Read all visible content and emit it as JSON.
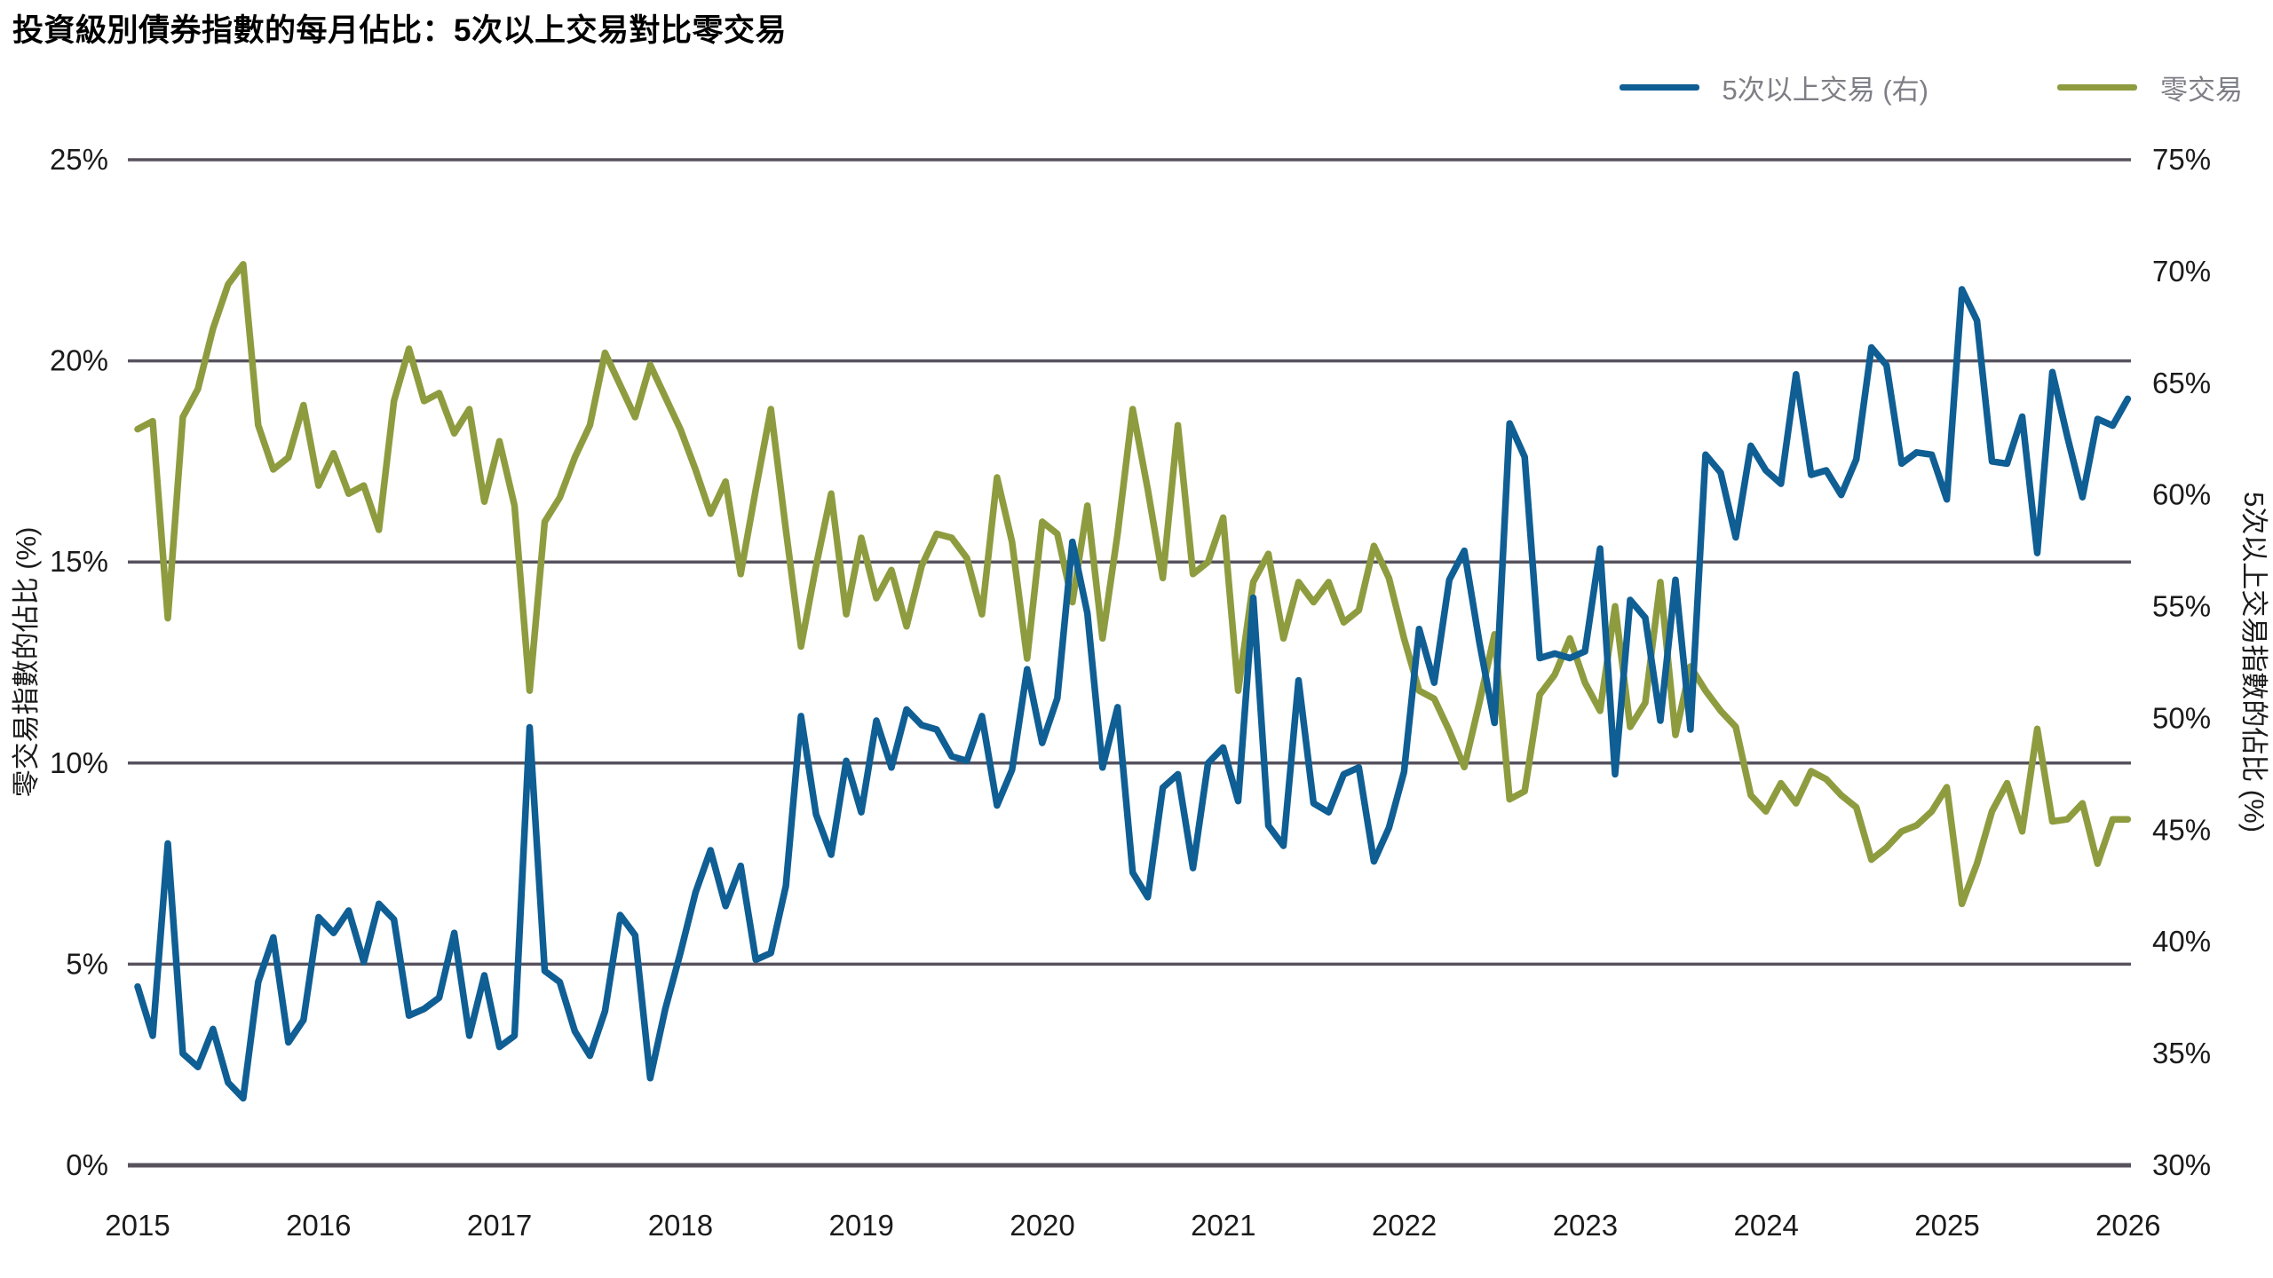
{
  "title": "投資級別債券指數的每月佔比：5次以上交易對比零交易",
  "colors": {
    "background": "#ffffff",
    "series_blue": "#0f5e94",
    "series_olive": "#8e9c3f",
    "grid": "#57525e",
    "axis": "#57525e",
    "tick_text": "#1b1b1b",
    "legend_text": "#7e7e86",
    "title_text": "#000000"
  },
  "chart_data": {
    "type": "line",
    "title": "投資級別債券指數的每月佔比：5次以上交易對比零交易",
    "x": {
      "start": "2015-01",
      "interval": "month",
      "count": 133
    },
    "x_tick_labels": [
      "2015",
      "2016",
      "2017",
      "2018",
      "2019",
      "2020",
      "2021",
      "2022",
      "2023",
      "2024",
      "2025",
      "2026"
    ],
    "grid": "horizontal",
    "legend_position": "top-right",
    "left_axis": {
      "label": "零交易指數的佔比 (%)",
      "min": 0,
      "max": 25,
      "tick_values": [
        25,
        20,
        15,
        10,
        5,
        0
      ],
      "tick_labels": [
        "25%",
        "20%",
        "15%",
        "10%",
        "5%",
        "0%"
      ]
    },
    "right_axis": {
      "label": "5次以上交易指數的佔比 (%)",
      "min": 30,
      "max": 75,
      "tick_values": [
        75,
        70,
        65,
        60,
        55,
        50,
        45,
        40,
        35,
        30
      ],
      "tick_labels": [
        "75%",
        "70%",
        "65%",
        "60%",
        "55%",
        "50%",
        "45%",
        "40%",
        "35%",
        "30%"
      ]
    },
    "series": [
      {
        "name": "5次以上交易 (右)",
        "axis": "right",
        "color": "#0f5e94",
        "values": [
          38.0,
          35.8,
          44.4,
          35.0,
          34.4,
          36.1,
          33.7,
          33.0,
          38.2,
          40.2,
          35.5,
          36.5,
          41.1,
          40.4,
          41.4,
          39.1,
          41.7,
          41.0,
          36.7,
          37.0,
          37.5,
          40.4,
          35.8,
          38.5,
          35.3,
          35.8,
          49.6,
          38.7,
          38.2,
          36.0,
          34.9,
          36.9,
          41.2,
          40.3,
          33.9,
          37.0,
          39.5,
          42.2,
          44.1,
          41.6,
          43.4,
          39.2,
          39.5,
          42.5,
          50.1,
          45.7,
          43.9,
          48.1,
          45.8,
          49.9,
          47.8,
          50.4,
          49.7,
          49.5,
          48.3,
          48.1,
          50.1,
          46.1,
          47.7,
          52.2,
          48.9,
          50.9,
          57.9,
          54.7,
          47.8,
          50.5,
          43.1,
          42.0,
          46.9,
          47.5,
          43.3,
          48.0,
          48.7,
          46.3,
          55.4,
          45.2,
          44.3,
          51.7,
          46.2,
          45.8,
          47.5,
          47.8,
          43.6,
          45.1,
          47.6,
          54.0,
          51.6,
          56.2,
          57.5,
          53.4,
          49.8,
          63.2,
          61.7,
          52.7,
          52.9,
          52.7,
          53.0,
          57.6,
          47.5,
          55.3,
          54.5,
          49.9,
          56.2,
          49.5,
          61.8,
          61.0,
          58.1,
          62.2,
          61.1,
          60.5,
          65.4,
          60.9,
          61.1,
          60.0,
          61.6,
          66.6,
          65.8,
          61.4,
          61.9,
          61.8,
          59.8,
          69.2,
          67.8,
          61.5,
          61.4,
          63.5,
          57.4,
          65.5,
          62.6,
          59.9,
          63.4,
          63.1,
          64.3
        ]
      },
      {
        "name": "零交易",
        "axis": "left",
        "color": "#8e9c3f",
        "values": [
          18.3,
          18.5,
          13.6,
          18.6,
          19.3,
          20.8,
          21.9,
          22.4,
          18.4,
          17.3,
          17.6,
          18.9,
          16.9,
          17.7,
          16.7,
          16.9,
          15.8,
          19.0,
          20.3,
          19.0,
          19.2,
          18.2,
          18.8,
          16.5,
          18.0,
          16.4,
          11.8,
          16.0,
          16.6,
          17.6,
          18.4,
          20.2,
          19.4,
          18.6,
          19.9,
          19.1,
          18.3,
          17.3,
          16.2,
          17.0,
          14.7,
          16.8,
          18.8,
          15.8,
          12.9,
          14.9,
          16.7,
          13.7,
          15.6,
          14.1,
          14.8,
          13.4,
          14.9,
          15.7,
          15.6,
          15.1,
          13.7,
          17.1,
          15.5,
          12.6,
          16.0,
          15.7,
          14.0,
          16.4,
          13.1,
          15.7,
          18.8,
          16.8,
          14.6,
          18.4,
          14.7,
          15.0,
          16.1,
          11.8,
          14.5,
          15.2,
          13.1,
          14.5,
          14.0,
          14.5,
          13.5,
          13.8,
          15.4,
          14.6,
          13.1,
          11.8,
          11.6,
          10.8,
          9.9,
          11.5,
          13.2,
          9.1,
          9.3,
          11.7,
          12.2,
          13.1,
          12.0,
          11.3,
          13.9,
          10.9,
          11.5,
          14.5,
          10.7,
          12.4,
          11.8,
          11.3,
          10.9,
          9.2,
          8.8,
          9.5,
          9.0,
          9.8,
          9.6,
          9.2,
          8.9,
          7.6,
          7.9,
          8.3,
          8.45,
          8.8,
          9.4,
          6.5,
          7.5,
          8.8,
          9.5,
          8.3,
          10.85,
          8.55,
          8.6,
          9.0,
          7.5,
          8.6,
          8.6
        ]
      }
    ]
  }
}
